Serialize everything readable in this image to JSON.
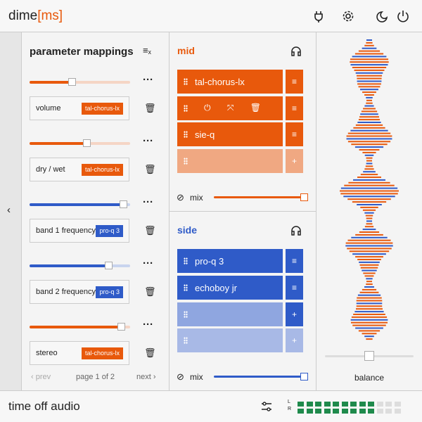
{
  "header": {
    "logo": {
      "name": "dime",
      "tag": "[ms]"
    }
  },
  "mappings": {
    "title": "parameter mappings",
    "items": [
      {
        "label": "volume",
        "plugin": "tal-chorus-lx"
      },
      {
        "label": "dry / wet",
        "plugin": "tal-chorus-lx"
      },
      {
        "label": "band 1 frequency",
        "plugin": "pro-q 3"
      },
      {
        "label": "band 2 frequency",
        "plugin": "pro-q 3"
      },
      {
        "label": "stereo",
        "plugin": "tal-chorus-lx"
      }
    ],
    "prev": "prev",
    "page": "page 1 of 2",
    "next": "next"
  },
  "mid": {
    "title": "mid",
    "plugins": [
      "tal-chorus-lx",
      "sie-q"
    ],
    "mix": "mix"
  },
  "side": {
    "title": "side",
    "plugins": [
      "pro-q 3",
      "echoboy jr"
    ],
    "mix": "mix"
  },
  "balance": {
    "label": "balance"
  },
  "footer": {
    "brand": "time off audio",
    "left": "L",
    "right": "R"
  }
}
